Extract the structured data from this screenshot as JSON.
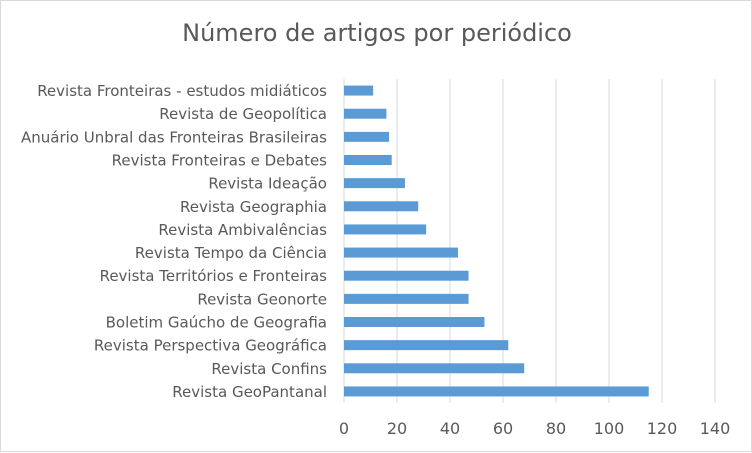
{
  "chart_data": {
    "type": "bar",
    "orientation": "horizontal",
    "title": "Número de artigos por periódico",
    "xlabel": "",
    "ylabel": "",
    "categories": [
      "Revista Fronteiras - estudos midiáticos",
      "Revista de Geopolítica",
      "Anuário Unbral das Fronteiras Brasileiras",
      "Revista Fronteiras e Debates",
      "Revista Ideação",
      "Revista Geographia",
      "Revista Ambivalências",
      "Revista Tempo da Ciência",
      "Revista Territórios e Fronteiras",
      "Revista Geonorte",
      "Boletim Gaúcho de Geografia",
      "Revista Perspectiva Geográfica",
      "Revista Confins",
      "Revista GeoPantanal"
    ],
    "values": [
      11,
      16,
      17,
      18,
      23,
      28,
      31,
      43,
      47,
      47,
      53,
      62,
      68,
      115
    ],
    "xlim": [
      0,
      140
    ],
    "xticks": [
      0,
      20,
      40,
      60,
      80,
      100,
      120,
      140
    ],
    "grid": true,
    "legend": "none",
    "bar_color": "#5b9bd5",
    "grid_color": "#d9d9d9"
  }
}
